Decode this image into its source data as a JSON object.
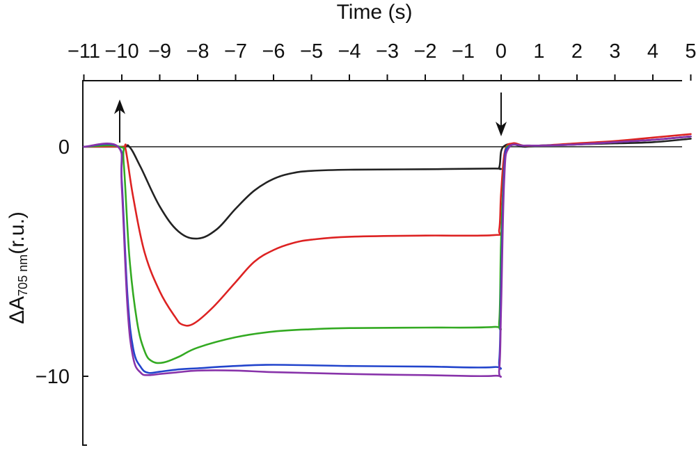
{
  "chart_data": {
    "type": "line",
    "xlabel": "Time (s)",
    "ylabel": {
      "main": "ΔA",
      "sub": "705 nm",
      "unit": "(r.u.)"
    },
    "xlim": [
      -11,
      5
    ],
    "ylim": [
      -13,
      3
    ],
    "x_ticks": [
      -11,
      -10,
      -9,
      -8,
      -7,
      -6,
      -5,
      -4,
      -3,
      -2,
      -1,
      0,
      1,
      2,
      3,
      4,
      5
    ],
    "x_tick_labels": [
      "−11",
      "−10",
      "−9",
      "−8",
      "−7",
      "−6",
      "−5",
      "−4",
      "−3",
      "−2",
      "−1",
      "0",
      "1",
      "2",
      "3",
      "4",
      "5"
    ],
    "y_ticks": [
      0,
      -10
    ],
    "y_tick_labels": [
      "0",
      "−10"
    ],
    "x_axis_position": "top",
    "grid": false,
    "legend": "none",
    "reference_line": {
      "y": 0,
      "color": "#555555"
    },
    "annotations": [
      {
        "type": "arrow-up",
        "x": -10
      },
      {
        "type": "arrow-down",
        "x": 0
      }
    ],
    "series": [
      {
        "color": "#222222",
        "points": [
          [
            -11,
            0
          ],
          [
            -10,
            0
          ],
          [
            -9.8,
            0
          ],
          [
            -9.5,
            -0.9
          ],
          [
            -9.0,
            -2.6
          ],
          [
            -8.5,
            -3.7
          ],
          [
            -8.0,
            -4.0
          ],
          [
            -7.5,
            -3.6
          ],
          [
            -7.0,
            -2.7
          ],
          [
            -6.5,
            -1.9
          ],
          [
            -6.0,
            -1.4
          ],
          [
            -5.5,
            -1.15
          ],
          [
            -5.0,
            -1.05
          ],
          [
            -4.0,
            -1.0
          ],
          [
            -2.0,
            -0.98
          ],
          [
            -0.2,
            -0.95
          ],
          [
            -0.05,
            -0.9
          ],
          [
            0.0,
            -0.2
          ],
          [
            0.1,
            0.05
          ],
          [
            0.3,
            0.12
          ],
          [
            0.6,
            0
          ],
          [
            1.0,
            0.05
          ],
          [
            2.0,
            0.1
          ],
          [
            3.0,
            0.15
          ],
          [
            4.0,
            0.2
          ],
          [
            5.0,
            0.35
          ]
        ]
      },
      {
        "color": "#dd2222",
        "points": [
          [
            -11,
            0
          ],
          [
            -10,
            0
          ],
          [
            -9.9,
            -0.1
          ],
          [
            -9.7,
            -2.2
          ],
          [
            -9.4,
            -4.6
          ],
          [
            -9.0,
            -6.3
          ],
          [
            -8.6,
            -7.4
          ],
          [
            -8.4,
            -7.75
          ],
          [
            -8.1,
            -7.7
          ],
          [
            -7.6,
            -7.0
          ],
          [
            -7.0,
            -5.9
          ],
          [
            -6.5,
            -5.0
          ],
          [
            -6.0,
            -4.5
          ],
          [
            -5.5,
            -4.2
          ],
          [
            -5.0,
            -4.05
          ],
          [
            -4.0,
            -3.92
          ],
          [
            -2.0,
            -3.87
          ],
          [
            -0.2,
            -3.85
          ],
          [
            -0.05,
            -3.6
          ],
          [
            0.0,
            -2.0
          ],
          [
            0.1,
            -0.2
          ],
          [
            0.3,
            0.15
          ],
          [
            0.6,
            0.05
          ],
          [
            1.0,
            0.05
          ],
          [
            2.0,
            0.15
          ],
          [
            3.0,
            0.25
          ],
          [
            4.0,
            0.4
          ],
          [
            5.0,
            0.55
          ]
        ]
      },
      {
        "color": "#33aa22",
        "points": [
          [
            -11,
            0
          ],
          [
            -10.05,
            0
          ],
          [
            -9.95,
            -0.7
          ],
          [
            -9.8,
            -4.8
          ],
          [
            -9.6,
            -7.6
          ],
          [
            -9.4,
            -8.9
          ],
          [
            -9.2,
            -9.35
          ],
          [
            -8.9,
            -9.4
          ],
          [
            -8.5,
            -9.15
          ],
          [
            -8.0,
            -8.75
          ],
          [
            -7.0,
            -8.3
          ],
          [
            -6.0,
            -8.05
          ],
          [
            -5.0,
            -7.95
          ],
          [
            -4.0,
            -7.9
          ],
          [
            -2.0,
            -7.88
          ],
          [
            -0.2,
            -7.85
          ],
          [
            -0.05,
            -7.6
          ],
          [
            0.0,
            -4.0
          ],
          [
            0.1,
            -0.5
          ],
          [
            0.25,
            0.05
          ],
          [
            0.6,
            0.05
          ],
          [
            1.0,
            0.05
          ],
          [
            2.0,
            0.1
          ],
          [
            3.0,
            0.2
          ],
          [
            4.0,
            0.3
          ],
          [
            5.0,
            0.45
          ]
        ]
      },
      {
        "color": "#2244cc",
        "points": [
          [
            -11,
            0
          ],
          [
            -10.1,
            0
          ],
          [
            -10.0,
            -1.5
          ],
          [
            -9.85,
            -6.5
          ],
          [
            -9.7,
            -8.8
          ],
          [
            -9.5,
            -9.6
          ],
          [
            -9.3,
            -9.85
          ],
          [
            -9.0,
            -9.8
          ],
          [
            -8.5,
            -9.7
          ],
          [
            -8.0,
            -9.65
          ],
          [
            -7.0,
            -9.55
          ],
          [
            -6.0,
            -9.5
          ],
          [
            -4.0,
            -9.55
          ],
          [
            -2.0,
            -9.58
          ],
          [
            -0.2,
            -9.6
          ],
          [
            -0.05,
            -9.3
          ],
          [
            0.0,
            -6.0
          ],
          [
            0.08,
            -1.0
          ],
          [
            0.2,
            0.0
          ],
          [
            0.6,
            0.05
          ],
          [
            1.0,
            0.05
          ],
          [
            2.0,
            0.1
          ],
          [
            3.0,
            0.2
          ],
          [
            4.0,
            0.3
          ],
          [
            5.0,
            0.45
          ]
        ]
      },
      {
        "color": "#8833aa",
        "points": [
          [
            -11,
            0
          ],
          [
            -10.1,
            0
          ],
          [
            -10.0,
            -1.8
          ],
          [
            -9.85,
            -7.0
          ],
          [
            -9.7,
            -9.2
          ],
          [
            -9.5,
            -9.85
          ],
          [
            -9.3,
            -9.95
          ],
          [
            -9.0,
            -9.9
          ],
          [
            -8.5,
            -9.82
          ],
          [
            -8.0,
            -9.75
          ],
          [
            -7.0,
            -9.75
          ],
          [
            -6.0,
            -9.82
          ],
          [
            -4.0,
            -9.9
          ],
          [
            -2.0,
            -9.95
          ],
          [
            -0.2,
            -9.98
          ],
          [
            -0.05,
            -9.7
          ],
          [
            0.0,
            -7.0
          ],
          [
            0.08,
            -1.5
          ],
          [
            0.2,
            -0.05
          ],
          [
            0.6,
            0.05
          ],
          [
            1.0,
            0.05
          ],
          [
            2.0,
            0.1
          ],
          [
            3.0,
            0.2
          ],
          [
            4.0,
            0.3
          ],
          [
            5.0,
            0.45
          ]
        ]
      }
    ]
  }
}
